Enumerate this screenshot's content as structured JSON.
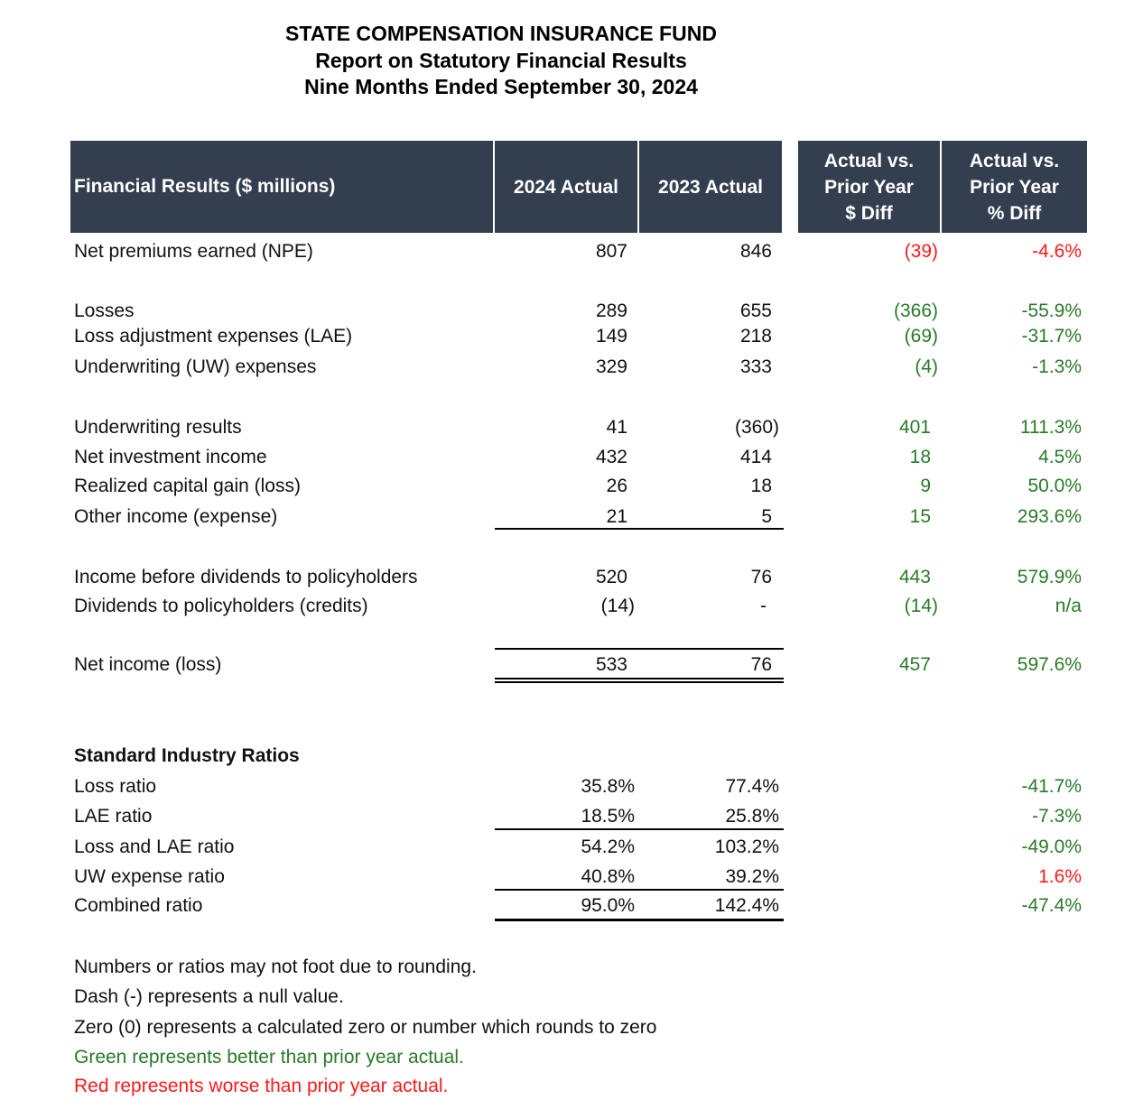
{
  "title": {
    "line1": "STATE COMPENSATION INSURANCE FUND",
    "line2": "Report on Statutory Financial Results",
    "line3": "Nine Months Ended September 30, 2024"
  },
  "header": {
    "label": "Financial Results ($ millions)",
    "col_2024": "2024 Actual",
    "col_2023": "2023 Actual",
    "diff_dollar": [
      "Actual vs.",
      "Prior Year",
      "$ Diff"
    ],
    "diff_pct": [
      "Actual vs.",
      "Prior Year",
      "% Diff"
    ]
  },
  "colors": {
    "header_bg": "#333f4f",
    "better": "#2a7a2a",
    "worse": "#ff1a1a"
  },
  "rows": [
    {
      "label": "Net premiums earned (NPE)",
      "a2024": "807",
      "a2023": "846",
      "diff": "(39)",
      "pct": "-4.6%",
      "tone": "worse"
    },
    {
      "label": "Losses",
      "a2024": "289",
      "a2023": "655",
      "diff": "(366)",
      "pct": "-55.9%",
      "tone": "better"
    },
    {
      "label": "Loss adjustment expenses (LAE)",
      "a2024": "149",
      "a2023": "218",
      "diff": "(69)",
      "pct": "-31.7%",
      "tone": "better"
    },
    {
      "label": "Underwriting (UW) expenses",
      "a2024": "329",
      "a2023": "333",
      "diff": "(4)",
      "pct": "-1.3%",
      "tone": "better"
    },
    {
      "label": "Underwriting results",
      "a2024": "41",
      "a2023": "(360)",
      "diff": "401",
      "pct": "111.3%",
      "tone": "better"
    },
    {
      "label": "Net investment income",
      "a2024": "432",
      "a2023": "414",
      "diff": "18",
      "pct": "4.5%",
      "tone": "better"
    },
    {
      "label": "Realized capital gain (loss)",
      "a2024": "26",
      "a2023": "18",
      "diff": "9",
      "pct": "50.0%",
      "tone": "better"
    },
    {
      "label": "Other income (expense)",
      "a2024": "21",
      "a2023": "5",
      "diff": "15",
      "pct": "293.6%",
      "tone": "better"
    },
    {
      "label": "Income before dividends to policyholders",
      "a2024": "520",
      "a2023": "76",
      "diff": "443",
      "pct": "579.9%",
      "tone": "better"
    },
    {
      "label": "Dividends to policyholders (credits)",
      "a2024": "(14)",
      "a2023": "-",
      "diff": "(14)",
      "pct": "n/a",
      "tone": "better"
    },
    {
      "label": "Net income (loss)",
      "a2024": "533",
      "a2023": "76",
      "diff": "457",
      "pct": "597.6%",
      "tone": "better"
    }
  ],
  "ratios": {
    "title": "Standard Industry Ratios",
    "rows": [
      {
        "label": "Loss ratio",
        "a2024": "35.8%",
        "a2023": "77.4%",
        "pct": "-41.7%",
        "tone": "better"
      },
      {
        "label": "LAE ratio",
        "a2024": "18.5%",
        "a2023": "25.8%",
        "pct": "-7.3%",
        "tone": "better"
      },
      {
        "label": "Loss and LAE ratio",
        "a2024": "54.2%",
        "a2023": "103.2%",
        "pct": "-49.0%",
        "tone": "better"
      },
      {
        "label": "UW expense ratio",
        "a2024": "40.8%",
        "a2023": "39.2%",
        "pct": "1.6%",
        "tone": "worse"
      },
      {
        "label": "Combined ratio",
        "a2024": "95.0%",
        "a2023": "142.4%",
        "pct": "-47.4%",
        "tone": "better"
      }
    ]
  },
  "notes": [
    {
      "text": "Numbers or ratios may not foot due to rounding.",
      "tone": ""
    },
    {
      "text": "Dash (-) represents a null value.",
      "tone": ""
    },
    {
      "text": "Zero (0) represents a calculated zero or number which rounds to zero",
      "tone": ""
    },
    {
      "text": "Green represents better than prior year actual.",
      "tone": "better"
    },
    {
      "text": "Red represents worse than prior year actual.",
      "tone": "worse"
    }
  ]
}
